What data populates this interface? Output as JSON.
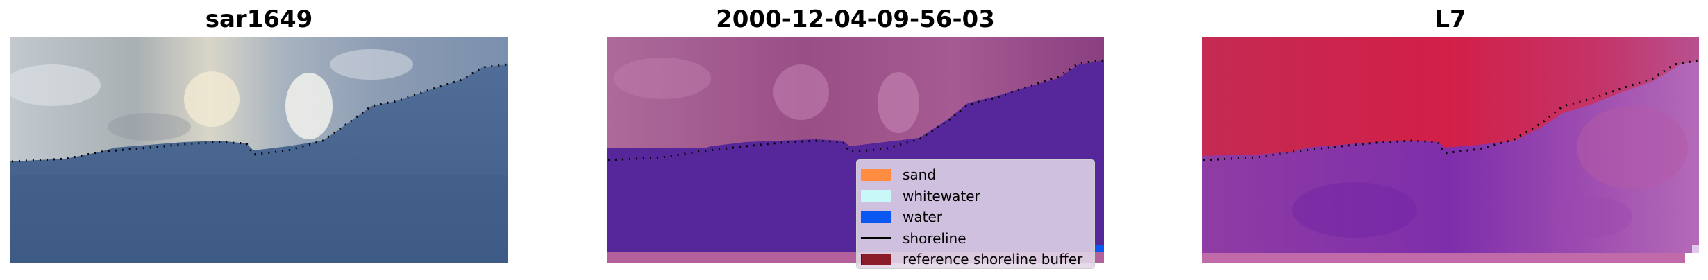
{
  "panels": [
    {
      "title": "sar1649"
    },
    {
      "title": "2000-12-04-09-56-03"
    },
    {
      "title": "L7"
    }
  ],
  "legend": {
    "items": [
      {
        "label": "sand",
        "color": "#ff8c40",
        "kind": "patch"
      },
      {
        "label": "whitewater",
        "color": "#c8f8f8",
        "kind": "patch"
      },
      {
        "label": "water",
        "color": "#0a57f2",
        "kind": "patch"
      },
      {
        "label": "shoreline",
        "color": "#000000",
        "kind": "line"
      },
      {
        "label": "reference shoreline buffer",
        "color": "#8b1c2a",
        "kind": "patch"
      }
    ]
  },
  "colors": {
    "rgb_land": "#b6bcc4",
    "rgb_water": "#4a6690",
    "classified_land": "#a05a8e",
    "classified_water": "#55279a",
    "classified_bottom_strip": "#b3609c",
    "index_land": "#c8244e",
    "index_water": "#8a3aa8"
  }
}
